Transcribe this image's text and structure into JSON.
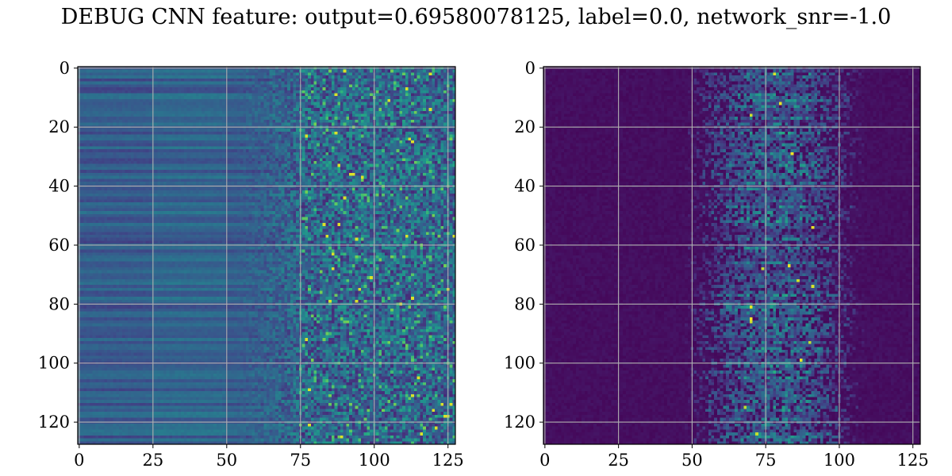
{
  "title": "DEBUG CNN feature: output=0.69580078125, label=0.0, network_snr=-1.0",
  "chart_data": [
    {
      "type": "heatmap",
      "name": "left",
      "rows": 128,
      "cols": 128,
      "xlim": [
        -0.5,
        127.5
      ],
      "ylim": [
        127.5,
        -0.5
      ],
      "x_ticks": [
        0,
        25,
        50,
        75,
        100,
        125
      ],
      "x_tick_labels": [
        "0",
        "25",
        "50",
        "75",
        "100",
        "125"
      ],
      "y_ticks": [
        0,
        20,
        40,
        60,
        80,
        100,
        120
      ],
      "y_tick_labels": [
        "0",
        "20",
        "40",
        "60",
        "80",
        "100",
        "120"
      ],
      "grid": true,
      "colormap": "viridis",
      "texture": "smooth-rows-left-noisy-right",
      "seed": 7
    },
    {
      "type": "heatmap",
      "name": "right",
      "rows": 128,
      "cols": 128,
      "xlim": [
        -0.5,
        127.5
      ],
      "ylim": [
        127.5,
        -0.5
      ],
      "x_ticks": [
        0,
        25,
        50,
        75,
        100,
        125
      ],
      "x_tick_labels": [
        "0",
        "25",
        "50",
        "75",
        "100",
        "125"
      ],
      "y_ticks": [
        0,
        20,
        40,
        60,
        80,
        100,
        120
      ],
      "y_tick_labels": [
        "0",
        "20",
        "40",
        "60",
        "80",
        "100",
        "120"
      ],
      "grid": true,
      "colormap": "viridis",
      "texture": "dark-with-center-streaks",
      "seed": 13
    }
  ]
}
